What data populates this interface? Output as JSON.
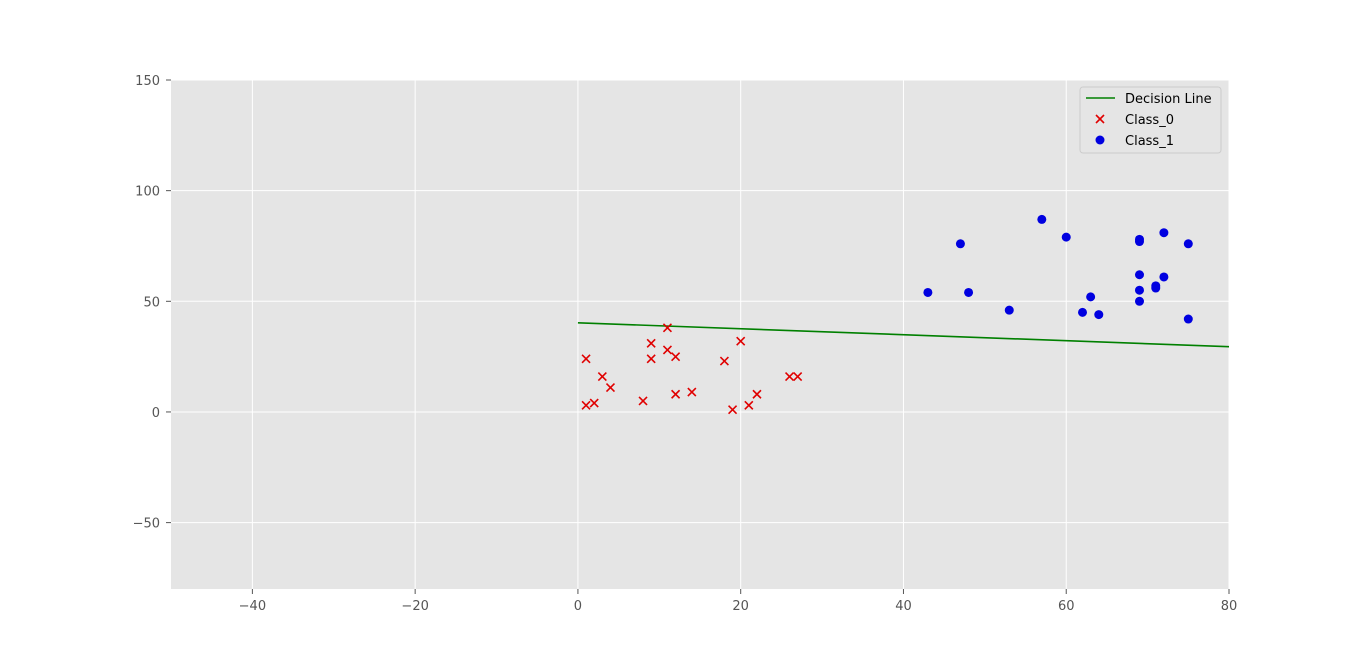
{
  "chart_data": {
    "type": "scatter",
    "title": "",
    "xlabel": "",
    "ylabel": "",
    "xlim": [
      -50,
      80
    ],
    "ylim": [
      -80,
      150
    ],
    "xticks": [
      -40,
      -20,
      0,
      20,
      40,
      60,
      80
    ],
    "yticks": [
      -50,
      0,
      50,
      100,
      150
    ],
    "x_tick_labels": [
      "−40",
      "−20",
      "0",
      "20",
      "40",
      "60",
      "80"
    ],
    "y_tick_labels": [
      "−50",
      "0",
      "50",
      "100",
      "150"
    ],
    "grid": true,
    "legend_position": "top-right",
    "series": [
      {
        "name": "Decision Line",
        "kind": "line",
        "color": "#008000",
        "points": [
          [
            0,
            40.3
          ],
          [
            80,
            29.5
          ]
        ]
      },
      {
        "name": "Class_0",
        "kind": "scatter",
        "marker": "x",
        "color": "#e00000",
        "points": [
          [
            1,
            24
          ],
          [
            1,
            3
          ],
          [
            2,
            4
          ],
          [
            3,
            16
          ],
          [
            4,
            11
          ],
          [
            8,
            5
          ],
          [
            9,
            31
          ],
          [
            9,
            24
          ],
          [
            11,
            38
          ],
          [
            11,
            28
          ],
          [
            12,
            25
          ],
          [
            12,
            8
          ],
          [
            14,
            9
          ],
          [
            18,
            23
          ],
          [
            19,
            1
          ],
          [
            20,
            32
          ],
          [
            21,
            3
          ],
          [
            22,
            8
          ],
          [
            26,
            16
          ],
          [
            27,
            16
          ]
        ]
      },
      {
        "name": "Class_1",
        "kind": "scatter",
        "marker": "o",
        "color": "#0000e0",
        "points": [
          [
            43,
            54
          ],
          [
            47,
            76
          ],
          [
            48,
            54
          ],
          [
            53,
            46
          ],
          [
            57,
            87
          ],
          [
            60,
            79
          ],
          [
            62,
            45
          ],
          [
            63,
            52
          ],
          [
            64,
            44
          ],
          [
            69,
            78
          ],
          [
            69,
            77
          ],
          [
            69,
            62
          ],
          [
            69,
            55
          ],
          [
            69,
            50
          ],
          [
            71,
            57
          ],
          [
            71,
            56
          ],
          [
            72,
            81
          ],
          [
            72,
            61
          ],
          [
            75,
            76
          ],
          [
            75,
            42
          ]
        ]
      }
    ]
  }
}
